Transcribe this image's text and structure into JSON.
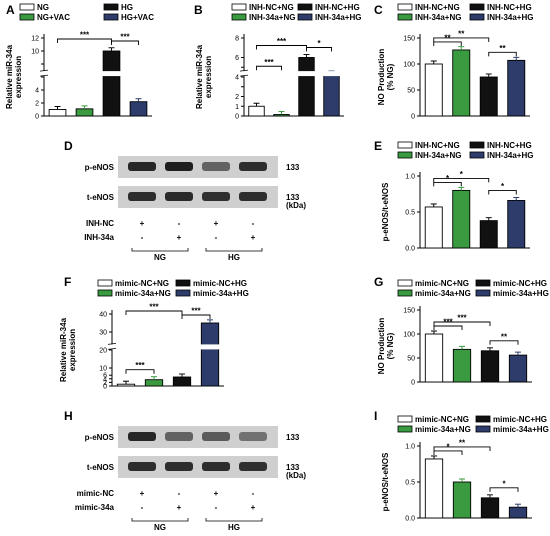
{
  "colors": {
    "white": "#ffffff",
    "green": "#3a9a3f",
    "black": "#111111",
    "navy": "#2d3c6b"
  },
  "panels": {
    "A": {
      "letter": "A"
    },
    "B": {
      "letter": "B"
    },
    "C": {
      "letter": "C"
    },
    "D": {
      "letter": "D"
    },
    "E": {
      "letter": "E"
    },
    "F": {
      "letter": "F"
    },
    "G": {
      "letter": "G"
    },
    "H": {
      "letter": "H"
    },
    "I": {
      "letter": "I"
    }
  },
  "blot_D": {
    "rows": [
      "p-eNOS",
      "t-eNOS"
    ],
    "mw": [
      "133",
      "133"
    ],
    "kda": "(kDa)",
    "treat_labels": [
      "INH-NC",
      "INH-34a"
    ],
    "treat_signs": [
      [
        "+",
        "-",
        "+",
        "-"
      ],
      [
        "-",
        "+",
        "-",
        "+"
      ]
    ],
    "groups": [
      "NG",
      "HG"
    ]
  },
  "blot_H": {
    "rows": [
      "p-eNOS",
      "t-eNOS"
    ],
    "mw": [
      "133",
      "133"
    ],
    "kda": "(kDa)",
    "treat_labels": [
      "mimic-NC",
      "mimic-34a"
    ],
    "treat_signs": [
      [
        "+",
        "-",
        "+",
        "-"
      ],
      [
        "-",
        "+",
        "-",
        "+"
      ]
    ],
    "groups": [
      "NG",
      "HG"
    ]
  },
  "chart_data": [
    {
      "id": "A",
      "type": "bar",
      "categories": [
        "NG",
        "NG+VAC",
        "HG",
        "HG+VAC"
      ],
      "values": [
        1,
        1.1,
        10,
        2.2
      ],
      "ylabel": "Relative miR-34a expression",
      "ylabel_lines": [
        "Relative miR-34a",
        "expression"
      ],
      "yticks": [
        0,
        2,
        4,
        6,
        8,
        10,
        12
      ],
      "yticks_labels": [
        "0",
        "2",
        "4",
        "",
        "",
        "10",
        "12"
      ],
      "ylim": [
        0,
        12
      ],
      "axis_break": true,
      "legend": [
        "NG",
        "HG",
        "NG+VAC",
        "HG+VAC"
      ],
      "sig": [
        "***",
        "***"
      ]
    },
    {
      "id": "B",
      "type": "bar",
      "categories": [
        "INH-NC+NG",
        "INH-34a+NG",
        "INH-NC+HG",
        "INH-34a+HG"
      ],
      "values": [
        1,
        0.15,
        6,
        4.3
      ],
      "ylabel": "Relative miR-34a expression",
      "ylabel_lines": [
        "Relative miR-34a",
        "expression"
      ],
      "yticks": [
        0,
        1,
        2,
        3,
        4,
        5,
        6,
        8
      ],
      "yticks_labels": [
        "0",
        "1",
        "2",
        "",
        "4",
        "",
        "6",
        "8"
      ],
      "ylim": [
        0,
        8
      ],
      "axis_break": true,
      "legend": [
        "INH-NC+NG",
        "INH-NC+HG",
        "INH-34a+NG",
        "INH-34a+HG"
      ],
      "sig": [
        "***",
        "***",
        "*"
      ]
    },
    {
      "id": "C",
      "type": "bar",
      "categories": [
        "INH-NC+NG",
        "INH-34a+NG",
        "INH-NC+HG",
        "INH-34a+HG"
      ],
      "values": [
        100,
        127,
        75,
        107
      ],
      "ylabel": "NO Production (% NG)",
      "ylabel_lines": [
        "NO Production",
        "(% NG)"
      ],
      "yticks": [
        0,
        50,
        100,
        150
      ],
      "yticks_labels": [
        "0",
        "50",
        "100",
        "150"
      ],
      "ylim": [
        0,
        150
      ],
      "legend": [
        "INH-NC+NG",
        "INH-NC+HG",
        "INH-34a+NG",
        "INH-34a+HG"
      ],
      "sig": [
        "**",
        "**",
        "**"
      ]
    },
    {
      "id": "E",
      "type": "bar",
      "categories": [
        "INH-NC+NG",
        "INH-34a+NG",
        "INH-NC+HG",
        "INH-34a+HG"
      ],
      "values": [
        0.57,
        0.8,
        0.38,
        0.66
      ],
      "ylabel": "p-eNOS/t-eNOS",
      "ylabel_lines": [
        "p-eNOS/t-eNOS"
      ],
      "yticks": [
        0,
        0.5,
        1.0
      ],
      "yticks_labels": [
        "0.0",
        "0.5",
        "1.0"
      ],
      "ylim": [
        0,
        1.0
      ],
      "legend": [
        "INH-NC+NG",
        "INH-NC+HG",
        "INH-34a+NG",
        "INH-34a+HG"
      ],
      "sig": [
        "*",
        "*",
        "*"
      ]
    },
    {
      "id": "F",
      "type": "bar",
      "categories": [
        "mimic-NC+NG",
        "mimic-34a+NG",
        "mimic-NC+HG",
        "mimic-34a+HG"
      ],
      "values": [
        1,
        3.5,
        5,
        35
      ],
      "ylabel": "Relative miR-34a expression",
      "ylabel_lines": [
        "Relative miR-34a",
        "expression"
      ],
      "yticks": [
        0,
        2,
        4,
        6,
        10,
        20,
        30,
        40
      ],
      "yticks_labels": [
        "0",
        "2",
        "4",
        "6",
        "10",
        "20",
        "30",
        "40"
      ],
      "ylim": [
        0,
        40
      ],
      "axis_break": true,
      "legend": [
        "mimic-NC+NG",
        "mimic-NC+HG",
        "mimic-34a+NG",
        "mimic-34a+HG"
      ],
      "sig": [
        "***",
        "***",
        "***"
      ]
    },
    {
      "id": "G",
      "type": "bar",
      "categories": [
        "mimic-NC+NG",
        "mimic-34a+NG",
        "mimic-NC+HG",
        "mimic-34a+HG"
      ],
      "values": [
        100,
        68,
        65,
        56
      ],
      "ylabel": "NO Production (% NG)",
      "ylabel_lines": [
        "NO Production",
        "(% NG)"
      ],
      "yticks": [
        0,
        50,
        100,
        150
      ],
      "yticks_labels": [
        "0",
        "50",
        "100",
        "150"
      ],
      "ylim": [
        0,
        150
      ],
      "legend": [
        "mimic-NC+NG",
        "mimic-NC+HG",
        "mimic-34a+NG",
        "mimic-34a+HG"
      ],
      "sig": [
        "***",
        "***",
        "**"
      ]
    },
    {
      "id": "I",
      "type": "bar",
      "categories": [
        "mimic-NC+NG",
        "mimic-34a+NG",
        "mimic-NC+HG",
        "mimic-34a+HG"
      ],
      "values": [
        0.82,
        0.5,
        0.28,
        0.15
      ],
      "ylabel": "p-eNOS/t-eNOS",
      "ylabel_lines": [
        "p-eNOS/t-eNOS"
      ],
      "yticks": [
        0,
        0.5,
        1.0
      ],
      "yticks_labels": [
        "0.0",
        "0.5",
        "1.0"
      ],
      "ylim": [
        0,
        1.0
      ],
      "legend": [
        "mimic-NC+NG",
        "mimic-NC+HG",
        "mimic-34a+NG",
        "mimic-34a+HG"
      ],
      "sig": [
        "*",
        "**",
        "*"
      ]
    }
  ]
}
